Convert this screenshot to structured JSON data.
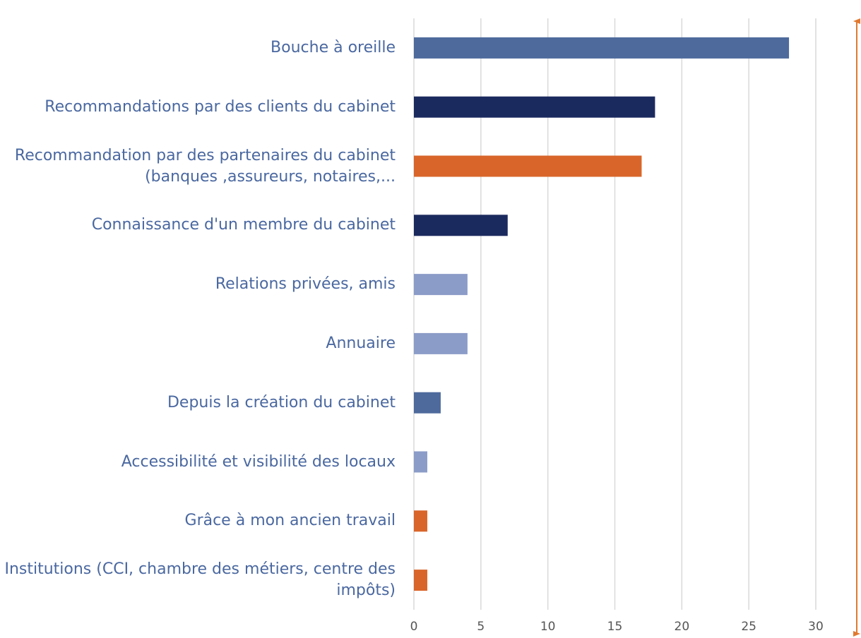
{
  "chart_data": {
    "type": "bar",
    "orientation": "horizontal",
    "categories": [
      "Bouche à oreille",
      "Recommandations par des clients du cabinet",
      "Recommandation par des partenaires du cabinet (banques ,assureurs, notaires,...",
      "Connaissance d'un membre du cabinet",
      "Relations privées, amis",
      "Annuaire",
      "Depuis la création du cabinet",
      "Accessibilité et visibilité des locaux",
      "Grâce à mon ancien travail",
      "Institutions (CCI, chambre des métiers, centre des impôts)"
    ],
    "values": [
      28,
      18,
      17,
      7,
      4,
      4,
      2,
      1,
      1,
      1
    ],
    "colors": [
      "#4e6a9c",
      "#1b2a5e",
      "#d9652a",
      "#1b2a5e",
      "#8c9cc8",
      "#8c9cc8",
      "#4e6a9c",
      "#8c9cc8",
      "#d9652a",
      "#d9652a"
    ],
    "xlim": [
      0,
      30
    ],
    "xticks": [
      0,
      5,
      10,
      15,
      20,
      25,
      30
    ],
    "grid": true
  }
}
